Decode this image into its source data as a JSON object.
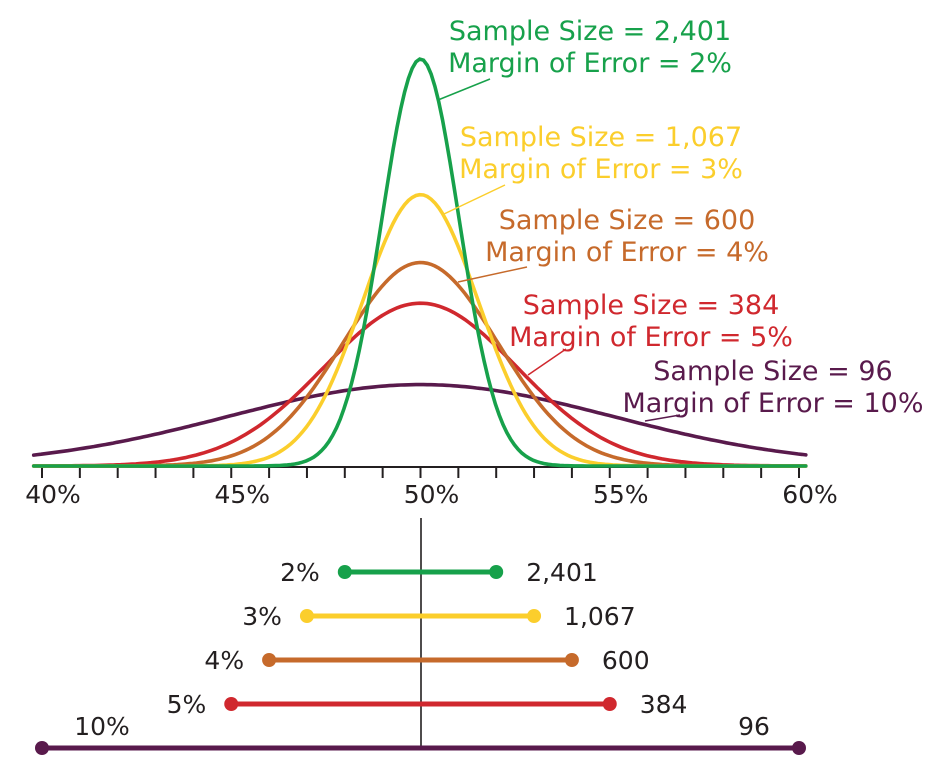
{
  "figure": {
    "background": "#FFFFFF",
    "ink_color": "#231F20"
  },
  "chart_data": [
    {
      "type": "line",
      "subtype": "normal-distribution-curves",
      "title": "",
      "xlabel": "",
      "ylabel": "",
      "x_axis": {
        "min": 40,
        "max": 60,
        "unit": "%",
        "tick_step": 1,
        "label_step": 5,
        "tick_labels": [
          "40%",
          "45%",
          "50%",
          "55%",
          "60%"
        ]
      },
      "center_pct": 50,
      "grid": "off",
      "legend": "inline-annotations",
      "series": [
        {
          "name": "moe-2",
          "sample_size": 2401,
          "sample_size_label": "2,401",
          "margin_of_error": 2,
          "moe_label": "2%",
          "color": "#17A14B",
          "annotation": [
            "Sample Size = 2,401",
            "Margin of Error = 2%"
          ]
        },
        {
          "name": "moe-3",
          "sample_size": 1067,
          "sample_size_label": "1,067",
          "margin_of_error": 3,
          "moe_label": "3%",
          "color": "#FBCE2C",
          "annotation": [
            "Sample Size = 1,067",
            "Margin of Error = 3%"
          ]
        },
        {
          "name": "moe-4",
          "sample_size": 600,
          "sample_size_label": "600",
          "margin_of_error": 4,
          "moe_label": "4%",
          "color": "#C66A2B",
          "annotation": [
            "Sample Size = 600",
            "Margin of Error = 4%"
          ]
        },
        {
          "name": "moe-5",
          "sample_size": 384,
          "sample_size_label": "384",
          "margin_of_error": 5,
          "moe_label": "5%",
          "color": "#D0282E",
          "annotation": [
            "Sample Size = 384",
            "Margin of Error = 5%"
          ]
        },
        {
          "name": "moe-10",
          "sample_size": 96,
          "sample_size_label": "96",
          "margin_of_error": 10,
          "moe_label": "10%",
          "color": "#591A4C",
          "annotation": [
            "Sample Size = 96",
            "Margin of Error = 10%"
          ]
        }
      ]
    },
    {
      "type": "interval",
      "subtype": "margin-of-error-ranges",
      "center_pct": 50,
      "rows": [
        {
          "moe_label": "2%",
          "size_label": "2,401",
          "low": 48,
          "high": 52,
          "color": "#17A14B"
        },
        {
          "moe_label": "3%",
          "size_label": "1,067",
          "low": 47,
          "high": 53,
          "color": "#FBCE2C"
        },
        {
          "moe_label": "4%",
          "size_label": "600",
          "low": 46,
          "high": 54,
          "color": "#C66A2B"
        },
        {
          "moe_label": "5%",
          "size_label": "384",
          "low": 45,
          "high": 55,
          "color": "#D0282E"
        },
        {
          "moe_label": "10%",
          "size_label": "96",
          "low": 40,
          "high": 60,
          "color": "#591A4C"
        }
      ]
    }
  ]
}
